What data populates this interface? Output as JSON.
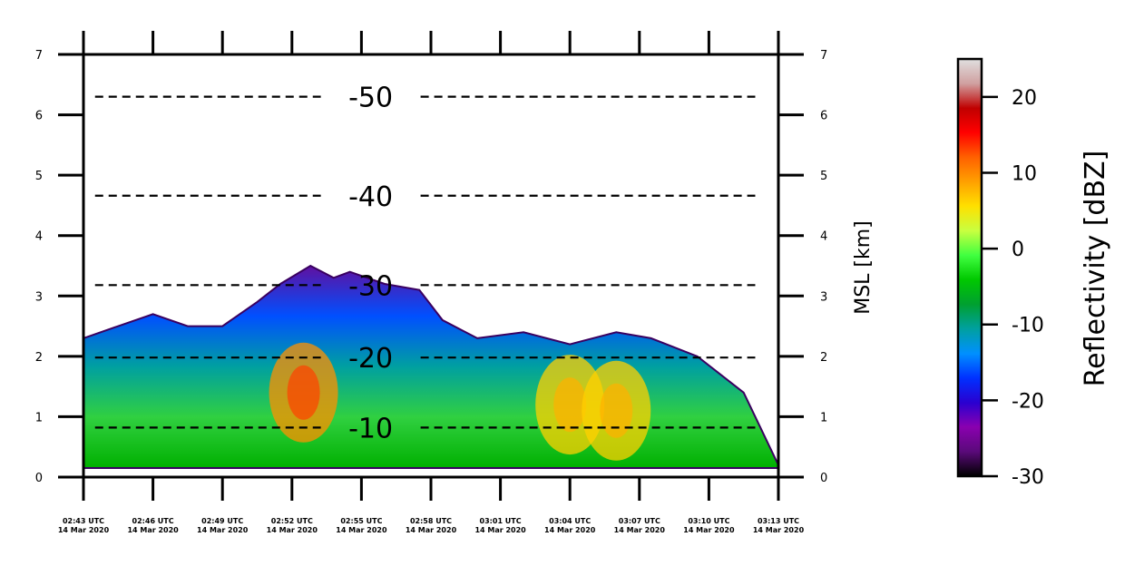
{
  "chart_data": {
    "type": "heatmap",
    "title": "",
    "xlabel": "",
    "ylabel": "",
    "ylabel_right": "MSL [km]",
    "ylim": [
      0,
      7
    ],
    "xlim_minutes": [
      0,
      30
    ],
    "x_ticks": [
      {
        "t": 0,
        "line1": "02:43 UTC",
        "line2": "14 Mar 2020"
      },
      {
        "t": 3,
        "line1": "02:46 UTC",
        "line2": "14 Mar 2020"
      },
      {
        "t": 6,
        "line1": "02:49 UTC",
        "line2": "14 Mar 2020"
      },
      {
        "t": 9,
        "line1": "02:52 UTC",
        "line2": "14 Mar 2020"
      },
      {
        "t": 12,
        "line1": "02:55 UTC",
        "line2": "14 Mar 2020"
      },
      {
        "t": 15,
        "line1": "02:58 UTC",
        "line2": "14 Mar 2020"
      },
      {
        "t": 18,
        "line1": "03:01 UTC",
        "line2": "14 Mar 2020"
      },
      {
        "t": 21,
        "line1": "03:04 UTC",
        "line2": "14 Mar 2020"
      },
      {
        "t": 24,
        "line1": "03:07 UTC",
        "line2": "14 Mar 2020"
      },
      {
        "t": 27,
        "line1": "03:10 UTC",
        "line2": "14 Mar 2020"
      },
      {
        "t": 30,
        "line1": "03:13 UTC",
        "line2": "14 Mar 2020"
      }
    ],
    "y_ticks": [
      "0",
      "1",
      "2",
      "3",
      "4",
      "5",
      "6",
      "7"
    ],
    "isotherms": [
      {
        "label": "-10",
        "y": 0.82
      },
      {
        "label": "-20",
        "y": 1.98
      },
      {
        "label": "-30",
        "y": 3.18
      },
      {
        "label": "-40",
        "y": 4.66
      },
      {
        "label": "-50",
        "y": 6.3
      }
    ],
    "colorbar": {
      "title": "Reflectivity [dBZ]",
      "range": [
        -30,
        25
      ],
      "ticks": [
        "-30",
        "-20",
        "-10",
        "0",
        "10",
        "20"
      ],
      "colors": [
        "#000000",
        "#5a0a7a",
        "#8a00b0",
        "#2a00d0",
        "#0030ff",
        "#0090ff",
        "#00a0a0",
        "#00a030",
        "#00c800",
        "#40ff40",
        "#c8ff40",
        "#ffe000",
        "#ffa000",
        "#ff6000",
        "#ff0000",
        "#c00000",
        "#d0a0a0",
        "#e0e0e0"
      ]
    },
    "echo_top_km": [
      {
        "t": 0.0,
        "top": 2.3
      },
      {
        "t": 1.5,
        "top": 2.5
      },
      {
        "t": 3.0,
        "top": 2.7
      },
      {
        "t": 4.5,
        "top": 2.5
      },
      {
        "t": 6.0,
        "top": 2.5
      },
      {
        "t": 7.5,
        "top": 2.9
      },
      {
        "t": 8.5,
        "top": 3.2
      },
      {
        "t": 9.8,
        "top": 3.5
      },
      {
        "t": 10.8,
        "top": 3.3
      },
      {
        "t": 11.5,
        "top": 3.4
      },
      {
        "t": 13.0,
        "top": 3.2
      },
      {
        "t": 14.5,
        "top": 3.1
      },
      {
        "t": 15.5,
        "top": 2.6
      },
      {
        "t": 17.0,
        "top": 2.3
      },
      {
        "t": 19.0,
        "top": 2.4
      },
      {
        "t": 21.0,
        "top": 2.2
      },
      {
        "t": 23.0,
        "top": 2.4
      },
      {
        "t": 24.5,
        "top": 2.3
      },
      {
        "t": 26.5,
        "top": 2.0
      },
      {
        "t": 28.5,
        "top": 1.4
      },
      {
        "t": 30.0,
        "top": 0.2
      }
    ],
    "reflectivity_cores_dbz": [
      {
        "t": 9.5,
        "z_km": 1.4,
        "dbz": 22
      },
      {
        "t": 21.0,
        "z_km": 1.2,
        "dbz": 14
      },
      {
        "t": 23.0,
        "z_km": 1.1,
        "dbz": 12
      }
    ]
  }
}
